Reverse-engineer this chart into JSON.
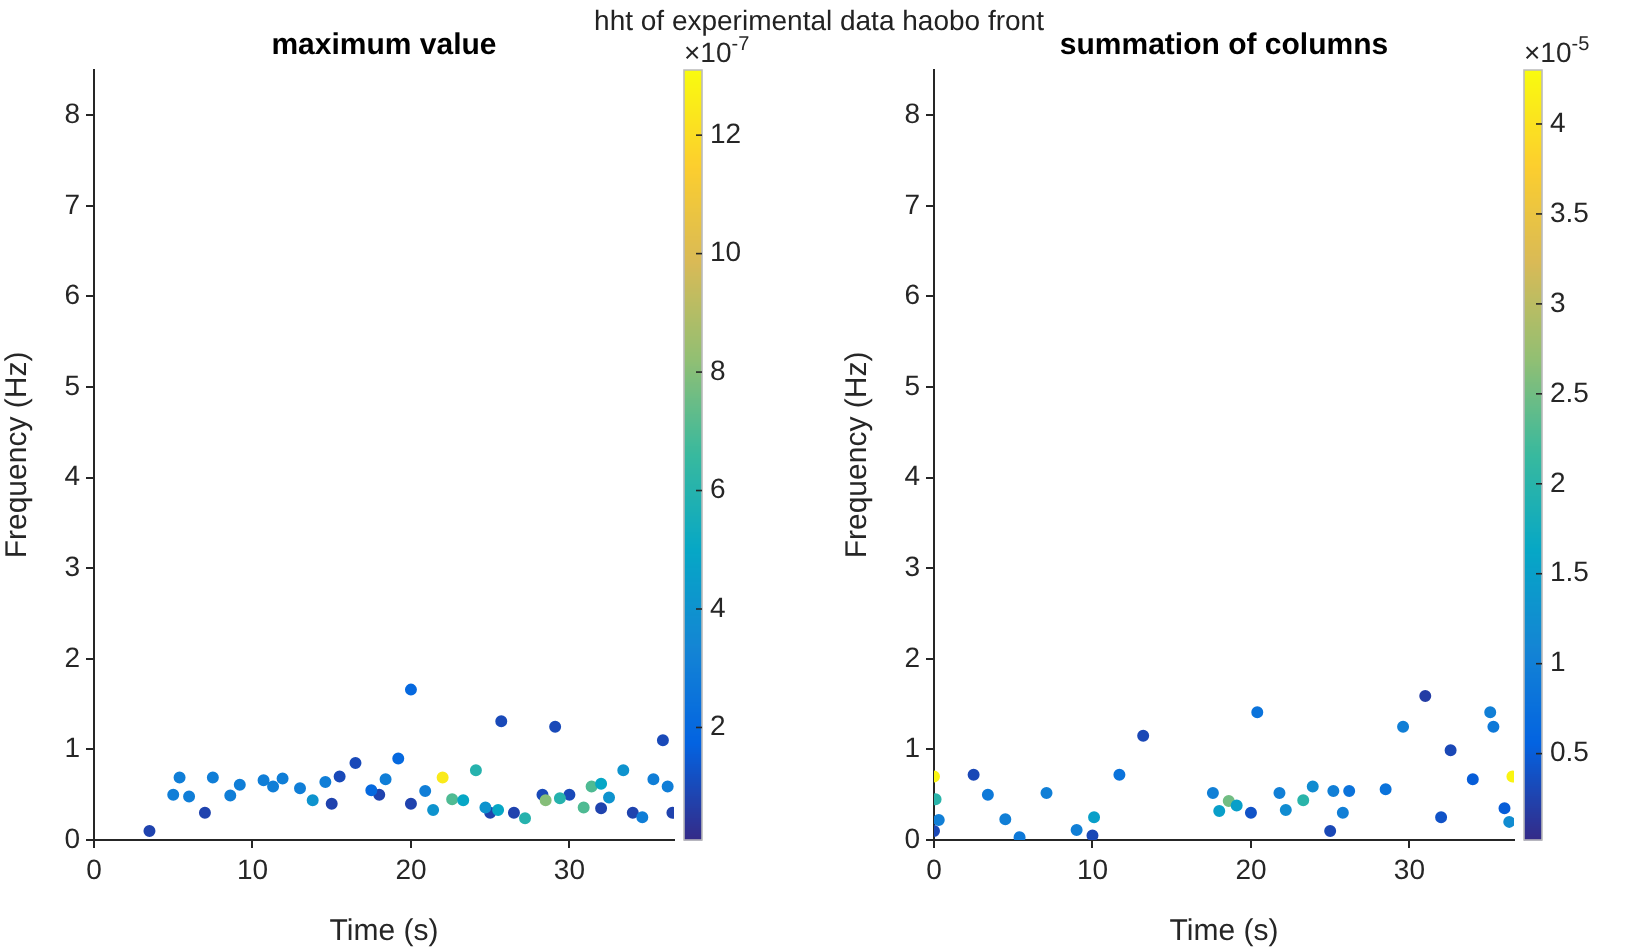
{
  "chart_data": [
    {
      "type": "scatter",
      "title": "maximum value",
      "xlabel": "Time (s)",
      "ylabel": "Frequency (Hz)",
      "clabel": "×10$^{-7}$",
      "annotations": [
        "hht of experimental data haobo front"
      ],
      "xlim": [
        0,
        36.6
      ],
      "xticks": [
        0,
        10,
        20,
        30
      ],
      "ylim": [
        0,
        8.5
      ],
      "yticks": [
        0,
        1,
        2,
        3,
        4,
        5,
        6,
        7,
        8
      ],
      "clim": [
        0.1,
        13.1
      ],
      "cticks": [
        2,
        4,
        6,
        8,
        10,
        12
      ],
      "grid": false,
      "legend": false,
      "marker": "circle",
      "series": [
        {
          "x": [
            5.0,
            5.4,
            6.0,
            7.5,
            8.6,
            9.2,
            10.7,
            11.3,
            11.9,
            13.0,
            13.8,
            14.6,
            15.5,
            16.5,
            17.5,
            18.4,
            19.2,
            20.0,
            20.9,
            21.4,
            22.0,
            22.6,
            23.3,
            24.1,
            24.7,
            25.5,
            27.2,
            28.5,
            29.4,
            30.9,
            31.4,
            32.0,
            32.5,
            33.4,
            34.6,
            35.3,
            36.2
          ],
          "values": [
            0.5,
            0.69,
            0.48,
            0.69,
            0.49,
            0.61,
            0.66,
            0.59,
            0.68,
            0.57,
            0.44,
            0.64,
            0.7,
            0.85,
            0.55,
            0.67,
            0.9,
            1.66,
            0.54,
            0.33,
            0.69,
            0.45,
            0.44,
            0.77,
            0.36,
            0.33,
            0.24,
            0.44,
            0.46,
            0.36,
            0.59,
            0.62,
            0.47,
            0.77,
            0.25,
            0.67,
            0.59
          ],
          "cvalues": [
            3,
            3,
            3,
            3,
            3,
            3,
            3,
            3,
            3,
            3,
            4,
            3,
            1,
            1,
            2,
            3,
            2,
            2,
            3,
            4,
            12.5,
            7,
            5,
            6,
            4,
            5,
            6,
            8,
            6,
            7,
            7,
            5,
            4,
            4,
            3,
            3,
            3
          ],
          "colors": [
            "#107ed7",
            "#107ed7",
            "#107ed7",
            "#107ed7",
            "#107ed7",
            "#107ed7",
            "#107ed7",
            "#107ed7",
            "#107ed7",
            "#107ed7",
            "#0e93ce",
            "#107ed7",
            "#1a49b8",
            "#1a49b8",
            "#0669df",
            "#107ed7",
            "#0669df",
            "#0669df",
            "#107ed7",
            "#0e93ce",
            "#faea1a",
            "#4fbb93",
            "#06a7c6",
            "#26b2ad",
            "#0e93ce",
            "#06a7c6",
            "#26b2ad",
            "#86be79",
            "#26b2ad",
            "#4fbb93",
            "#4fbb93",
            "#06a7c6",
            "#0e93ce",
            "#0e93ce",
            "#107ed7",
            "#107ed7",
            "#107ed7"
          ]
        },
        {
          "x": [
            3.5,
            7.0,
            15.0,
            18.0,
            20.0,
            25.0,
            25.7,
            26.5,
            28.3,
            29.1,
            30.0,
            32.0,
            34.0,
            35.9,
            36.5
          ],
          "values": [
            0.1,
            0.3,
            0.4,
            0.5,
            0.4,
            0.3,
            1.31,
            0.3,
            0.5,
            1.25,
            0.5,
            0.35,
            0.3,
            1.1,
            0.3
          ],
          "cvalues": [
            0.8,
            0.8,
            0.8,
            0.8,
            0.8,
            0.8,
            1,
            0.8,
            1,
            1,
            1,
            0.8,
            0.8,
            1,
            0.8
          ],
          "colors": [
            "#2043ae",
            "#2043ae",
            "#2043ae",
            "#2043ae",
            "#2043ae",
            "#2043ae",
            "#1a49b8",
            "#2043ae",
            "#1a49b8",
            "#1a49b8",
            "#1a49b8",
            "#2043ae",
            "#2043ae",
            "#1a49b8",
            "#2043ae"
          ]
        }
      ]
    },
    {
      "type": "scatter",
      "title": "summation of columns",
      "xlabel": "Time (s)",
      "ylabel": "Frequency (Hz)",
      "clabel": "×10$^{-5}$",
      "xlim": [
        0,
        36.6
      ],
      "xticks": [
        0,
        10,
        20,
        30
      ],
      "ylim": [
        0,
        8.5
      ],
      "yticks": [
        0,
        1,
        2,
        3,
        4,
        5,
        6,
        7,
        8
      ],
      "clim": [
        0.02,
        4.3
      ],
      "cticks": [
        0.5,
        1,
        1.5,
        2,
        2.5,
        3,
        3.5,
        4
      ],
      "grid": false,
      "legend": false,
      "marker": "circle",
      "series": [
        {
          "x": [
            0.0,
            0.1,
            0.3,
            2.5,
            3.4,
            4.5,
            5.4,
            7.1,
            9.0,
            10.1,
            11.7,
            13.2,
            15.0,
            17.6,
            18.0,
            18.6,
            19.1,
            20.4,
            21.0,
            21.8,
            22.2,
            23.3,
            23.9,
            25.2,
            25.8,
            26.2,
            28.5,
            29.6,
            30.3,
            31.0,
            32.6,
            34.0,
            35.1,
            35.3,
            35.8,
            36.3,
            36.5
          ],
          "values": [
            0.7,
            0.45,
            0.22,
            0.72,
            0.5,
            0.23,
            0.03,
            0.52,
            0.11,
            0.25,
            0.72,
            1.15,
            null,
            0.52,
            0.32,
            0.43,
            0.38,
            1.41,
            null,
            0.52,
            0.33,
            0.44,
            0.59,
            0.54,
            0.3,
            0.54,
            0.56,
            1.25,
            null,
            1.59,
            0.99,
            0.67,
            1.41,
            1.25,
            null,
            0.2,
            0.7
          ],
          "cvalues": [
            4.2,
            2.0,
            1.0,
            0.3,
            0.9,
            1.0,
            0.9,
            1.0,
            1.0,
            1.5,
            0.8,
            0.3,
            null,
            1.0,
            1.5,
            2.5,
            1.5,
            0.8,
            null,
            1.0,
            1.2,
            2.0,
            1.2,
            1.0,
            1.0,
            0.8,
            0.8,
            1.0,
            null,
            0.2,
            0.3,
            0.5,
            1.0,
            0.9,
            null,
            1.2,
            4.2
          ],
          "colors": [
            "#faf611",
            "#2ab4a9",
            "#117fd6",
            "#1a48b6",
            "#0e79d8",
            "#117fd6",
            "#0e79d8",
            "#117fd6",
            "#117fd6",
            "#099fc9",
            "#0b73db",
            "#1a48b6",
            null,
            "#117fd6",
            "#099fc9",
            "#72bd83",
            "#099fc9",
            "#0b73db",
            null,
            "#117fd6",
            "#118cd1",
            "#2ab4a9",
            "#118cd1",
            "#117fd6",
            "#117fd6",
            "#0b73db",
            "#0b73db",
            "#117fd6",
            null,
            "#243da5",
            "#1a48b6",
            "#065dd8",
            "#117fd6",
            "#0e79d8",
            null,
            "#118cd1",
            "#faf611"
          ]
        },
        {
          "x": [
            0,
            10,
            20,
            25,
            32,
            36
          ],
          "values": [
            0.1,
            0.05,
            0.3,
            0.1,
            0.25,
            0.35
          ],
          "cvalues": [
            0.3,
            0.3,
            0.4,
            0.3,
            0.4,
            0.5
          ],
          "colors": [
            "#1a48b6",
            "#1a48b6",
            "#1053c7",
            "#1a48b6",
            "#1053c7",
            "#065dd8"
          ]
        }
      ]
    }
  ]
}
